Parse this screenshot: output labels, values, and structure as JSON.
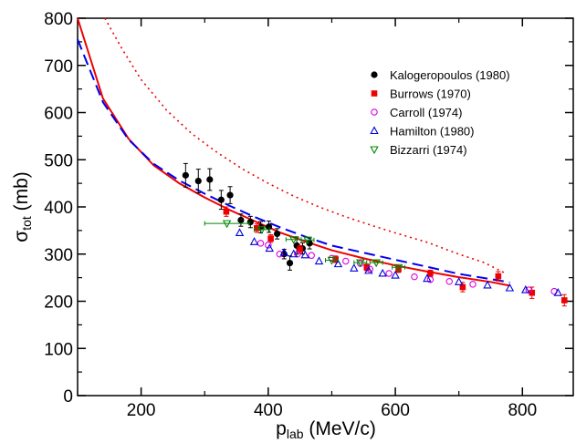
{
  "chart_data": {
    "type": "scatter",
    "xlabel": "p",
    "xlabel_sub": "lab",
    "xlabel_unit": " (MeV/c)",
    "ylabel": "σ",
    "ylabel_sub": "tot",
    "ylabel_unit": " (mb)",
    "xlim": [
      100,
      880
    ],
    "ylim": [
      0,
      800
    ],
    "xticks": [
      200,
      400,
      600,
      800
    ],
    "yticks": [
      0,
      100,
      200,
      300,
      400,
      500,
      600,
      700,
      800
    ],
    "legend_position": "top-right",
    "series": [
      {
        "name": "Kalogeropoulos (1980)",
        "marker": "filled-circle",
        "color": "#000000",
        "points": [
          {
            "x": 270,
            "y": 467,
            "err": 25
          },
          {
            "x": 290,
            "y": 455,
            "err": 25
          },
          {
            "x": 308,
            "y": 458,
            "err": 23
          },
          {
            "x": 326,
            "y": 415,
            "err": 20
          },
          {
            "x": 340,
            "y": 425,
            "err": 18
          },
          {
            "x": 357,
            "y": 372,
            "err": 13
          },
          {
            "x": 372,
            "y": 368,
            "err": 12
          },
          {
            "x": 388,
            "y": 357,
            "err": 12
          },
          {
            "x": 401,
            "y": 358,
            "err": 12
          },
          {
            "x": 414,
            "y": 343,
            "err": 11
          },
          {
            "x": 425,
            "y": 300,
            "err": 10
          },
          {
            "x": 434,
            "y": 281,
            "err": 15
          },
          {
            "x": 445,
            "y": 318,
            "err": 18
          },
          {
            "x": 454,
            "y": 312,
            "err": 12
          },
          {
            "x": 465,
            "y": 323,
            "err": 12
          }
        ]
      },
      {
        "name": "Burrows (1970)",
        "marker": "filled-square",
        "color": "#ee0000",
        "points": [
          {
            "x": 334,
            "y": 390,
            "err": 10
          },
          {
            "x": 382,
            "y": 355,
            "err": 9
          },
          {
            "x": 404,
            "y": 333,
            "err": 8
          },
          {
            "x": 450,
            "y": 310,
            "err": 8
          },
          {
            "x": 506,
            "y": 289,
            "err": 7
          },
          {
            "x": 555,
            "y": 272,
            "err": 7
          },
          {
            "x": 605,
            "y": 268,
            "err": 7
          },
          {
            "x": 655,
            "y": 259,
            "err": 7
          },
          {
            "x": 706,
            "y": 230,
            "err": 10
          },
          {
            "x": 762,
            "y": 253,
            "err": 10
          },
          {
            "x": 815,
            "y": 218,
            "err": 12
          },
          {
            "x": 866,
            "y": 202,
            "err": 12
          }
        ]
      },
      {
        "name": "Carroll (1974)",
        "marker": "open-circle",
        "color": "#dd00dd",
        "points": [
          {
            "x": 388,
            "y": 323
          },
          {
            "x": 400,
            "y": 319
          },
          {
            "x": 418,
            "y": 300
          },
          {
            "x": 446,
            "y": 300
          },
          {
            "x": 468,
            "y": 297
          },
          {
            "x": 500,
            "y": 291
          },
          {
            "x": 522,
            "y": 285
          },
          {
            "x": 545,
            "y": 280
          },
          {
            "x": 560,
            "y": 268
          },
          {
            "x": 590,
            "y": 259
          },
          {
            "x": 630,
            "y": 252
          },
          {
            "x": 655,
            "y": 246
          },
          {
            "x": 685,
            "y": 242
          },
          {
            "x": 722,
            "y": 236
          },
          {
            "x": 810,
            "y": 224
          },
          {
            "x": 850,
            "y": 221
          }
        ]
      },
      {
        "name": "Hamilton (1980)",
        "marker": "open-triangle-up",
        "color": "#0000dd",
        "points": [
          {
            "x": 355,
            "y": 345
          },
          {
            "x": 378,
            "y": 326
          },
          {
            "x": 402,
            "y": 312
          },
          {
            "x": 425,
            "y": 303
          },
          {
            "x": 440,
            "y": 300
          },
          {
            "x": 458,
            "y": 298
          },
          {
            "x": 480,
            "y": 285
          },
          {
            "x": 510,
            "y": 279
          },
          {
            "x": 535,
            "y": 270
          },
          {
            "x": 558,
            "y": 265
          },
          {
            "x": 580,
            "y": 259
          },
          {
            "x": 600,
            "y": 255
          },
          {
            "x": 650,
            "y": 248
          },
          {
            "x": 700,
            "y": 241
          },
          {
            "x": 745,
            "y": 234
          },
          {
            "x": 780,
            "y": 228
          },
          {
            "x": 805,
            "y": 224
          },
          {
            "x": 856,
            "y": 218
          }
        ]
      },
      {
        "name": "Bizzarri (1974)",
        "marker": "open-triangle-down",
        "color": "#008800",
        "points": [
          {
            "x": 335,
            "y": 365,
            "xerr": 35
          },
          {
            "x": 390,
            "y": 352,
            "xerr": 12
          },
          {
            "x": 440,
            "y": 331,
            "xerr": 12
          },
          {
            "x": 462,
            "y": 330,
            "xerr": 10
          },
          {
            "x": 500,
            "y": 287,
            "xerr": 10
          },
          {
            "x": 545,
            "y": 282,
            "xerr": 10
          },
          {
            "x": 570,
            "y": 282,
            "xerr": 10
          },
          {
            "x": 605,
            "y": 272,
            "xerr": 10
          }
        ]
      }
    ],
    "curves": [
      {
        "style": "solid",
        "color": "#ee0000",
        "points": [
          [
            100,
            800
          ],
          [
            140,
            630
          ],
          [
            180,
            545
          ],
          [
            220,
            488
          ],
          [
            260,
            450
          ],
          [
            300,
            420
          ],
          [
            340,
            393
          ],
          [
            380,
            369
          ],
          [
            420,
            345
          ],
          [
            460,
            326
          ],
          [
            500,
            308
          ],
          [
            550,
            291
          ],
          [
            600,
            276
          ],
          [
            650,
            263
          ],
          [
            700,
            251
          ],
          [
            750,
            241
          ],
          [
            780,
            233
          ]
        ]
      },
      {
        "style": "dashed",
        "color": "#0000ee",
        "points": [
          [
            100,
            755
          ],
          [
            140,
            622
          ],
          [
            180,
            543
          ],
          [
            220,
            491
          ],
          [
            260,
            456
          ],
          [
            300,
            428
          ],
          [
            340,
            402
          ],
          [
            380,
            378
          ],
          [
            420,
            356
          ],
          [
            460,
            336
          ],
          [
            500,
            318
          ],
          [
            550,
            303
          ],
          [
            600,
            288
          ],
          [
            650,
            273
          ],
          [
            700,
            258
          ],
          [
            750,
            247
          ],
          [
            780,
            240
          ]
        ]
      },
      {
        "style": "dotted",
        "color": "#ee0000",
        "points": [
          [
            143,
            800
          ],
          [
            170,
            735
          ],
          [
            200,
            670
          ],
          [
            240,
            605
          ],
          [
            280,
            555
          ],
          [
            320,
            515
          ],
          [
            360,
            480
          ],
          [
            400,
            450
          ],
          [
            440,
            423
          ],
          [
            480,
            400
          ],
          [
            520,
            380
          ],
          [
            560,
            362
          ],
          [
            600,
            345
          ],
          [
            650,
            325
          ],
          [
            700,
            300
          ],
          [
            740,
            282
          ],
          [
            775,
            258
          ]
        ]
      }
    ]
  }
}
